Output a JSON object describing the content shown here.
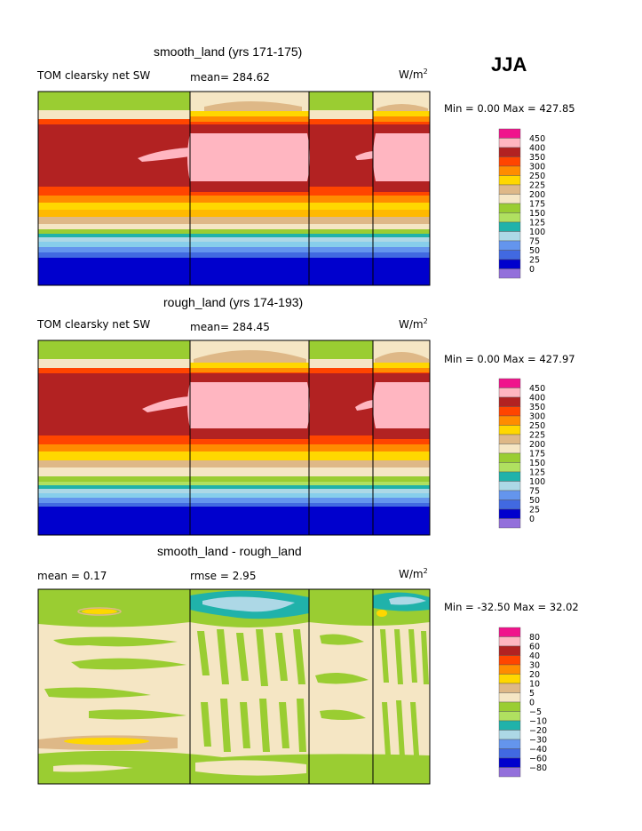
{
  "season": "JJA",
  "colors": {
    "pink_hot": "#f0148c",
    "pink_light": "#ffb6c1",
    "dark_red": "#b22222",
    "red_orange": "#ff4500",
    "orange": "#ff8c00",
    "gold": "#ffd700",
    "tan": "#deb887",
    "wheat": "#f5e6c4",
    "olive_green": "#9acd32",
    "light_green": "#b0e060",
    "teal": "#20b2aa",
    "light_blue": "#add8e6",
    "sky_blue": "#87ceeb",
    "cornflower": "#6495ed",
    "blue": "#4169e1",
    "navy": "#0000cd",
    "purple": "#9370db"
  },
  "panels": [
    {
      "title": "smooth_land (yrs 171-175)",
      "left_label": "TOM clearsky net SW",
      "center_label": "mean= 284.62",
      "units": "W/m",
      "units_sup": "2",
      "stats": "Min =    0.00 Max = 427.85"
    },
    {
      "title": "rough_land (yrs 174-193)",
      "left_label": "TOM clearsky net SW",
      "center_label": "mean= 284.45",
      "units": "W/m",
      "units_sup": "2",
      "stats": "Min =    0.00 Max = 427.97"
    },
    {
      "title": "smooth_land - rough_land",
      "left_label": "mean =    0.17",
      "center_label": "rmse =    2.95",
      "units": "W/m",
      "units_sup": "2",
      "stats": "Min = -32.50 Max =   32.02"
    }
  ],
  "chart_data": [
    {
      "type": "heatmap",
      "title": "smooth_land (yrs 171-175)",
      "variable": "TOM clearsky net SW",
      "units": "W/m2",
      "mean": 284.62,
      "min": 0.0,
      "max": 427.85,
      "levels": [
        "450",
        "400",
        "350",
        "300",
        "250",
        "225",
        "200",
        "175",
        "150",
        "125",
        "100",
        "75",
        "50",
        "25",
        "0"
      ]
    },
    {
      "type": "heatmap",
      "title": "rough_land (yrs 174-193)",
      "variable": "TOM clearsky net SW",
      "units": "W/m2",
      "mean": 284.45,
      "min": 0.0,
      "max": 427.97,
      "levels": [
        "450",
        "400",
        "350",
        "300",
        "250",
        "225",
        "200",
        "175",
        "150",
        "125",
        "100",
        "75",
        "50",
        "25",
        "0"
      ]
    },
    {
      "type": "heatmap",
      "title": "smooth_land - rough_land",
      "units": "W/m2",
      "mean": 0.17,
      "rmse": 2.95,
      "min": -32.5,
      "max": 32.02,
      "levels": [
        "80",
        "60",
        "40",
        "30",
        "20",
        "10",
        "5",
        "0",
        "−5",
        "−10",
        "−20",
        "−30",
        "−40",
        "−60",
        "−80"
      ]
    }
  ]
}
